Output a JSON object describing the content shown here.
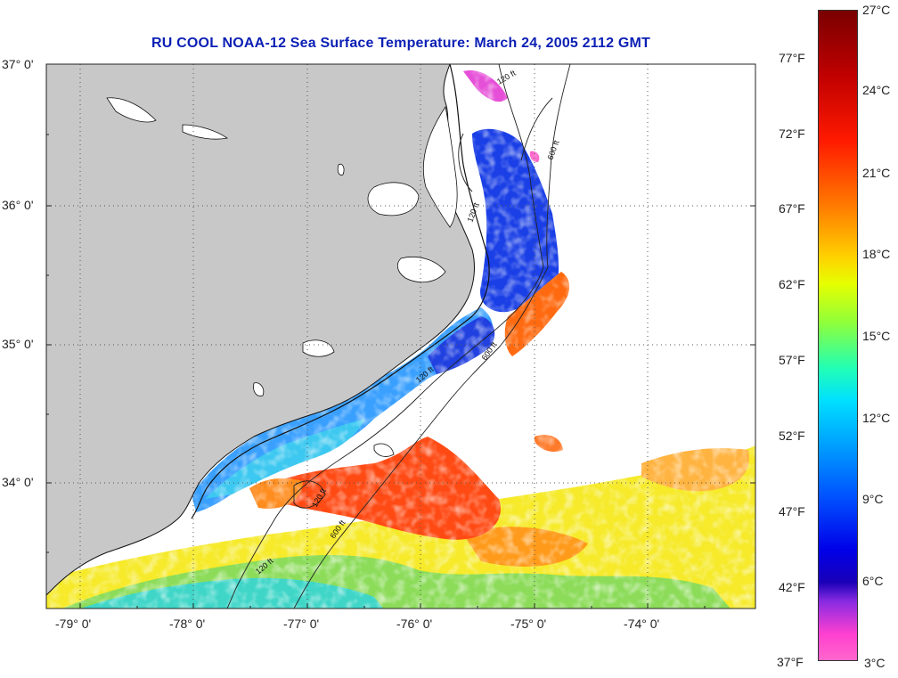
{
  "title": "RU COOL  NOAA-12  Sea Surface Temperature:  March 24, 2005 2112 GMT",
  "map": {
    "lat_labels": [
      "37° 0'",
      "36° 0'",
      "35° 0'",
      "34° 0'"
    ],
    "lon_labels": [
      "-79° 0'",
      "-78° 0'",
      "-77° 0'",
      "-76° 0'",
      "-75° 0'",
      "-74° 0'"
    ],
    "isobath_labels": [
      "120 ft",
      "600 ft",
      "120 ft",
      "120 ft",
      "600 ft",
      "120 ft",
      "600 ft",
      "120 ft"
    ],
    "colors": {
      "land": "#c8c8c8",
      "no_data": "#ffffff",
      "gridline": "#555555"
    }
  },
  "colorbar": {
    "fahrenheit_labels": [
      "77°F",
      "72°F",
      "67°F",
      "62°F",
      "57°F",
      "52°F",
      "47°F",
      "42°F",
      "37°F"
    ],
    "celsius_labels": [
      "27°C",
      "24°C",
      "21°C",
      "18°C",
      "15°C",
      "12°C",
      "9°C",
      "6°C",
      "3°C"
    ]
  }
}
